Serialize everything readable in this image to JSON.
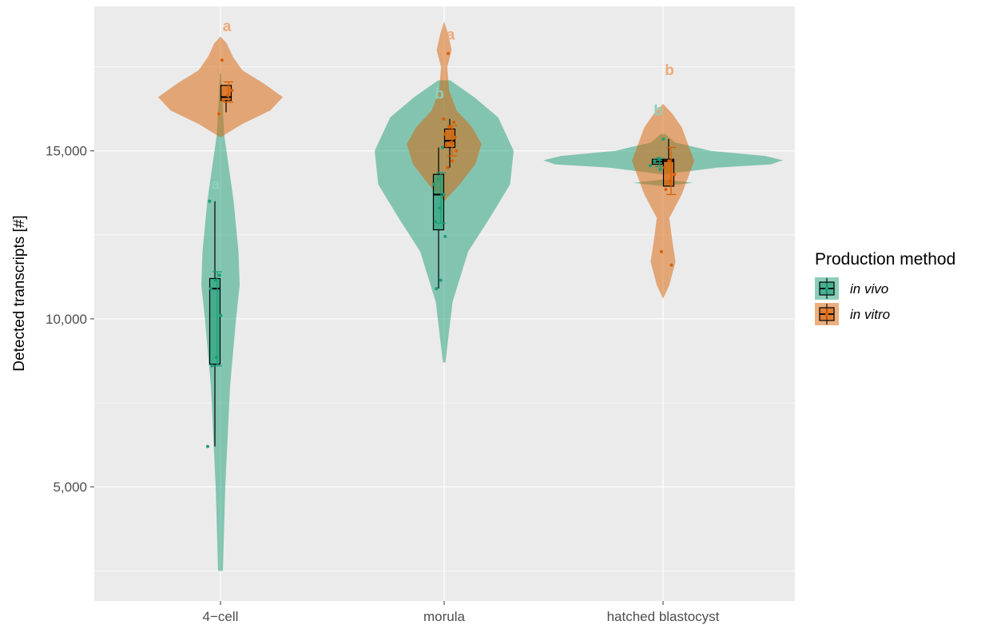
{
  "chart_data": {
    "type": "violin",
    "title": "",
    "xlabel": "",
    "ylabel": "Detected transcripts [#]",
    "categories": [
      "4−cell",
      "morula",
      "hatched blastocyst"
    ],
    "ylim": [
      1600,
      19300
    ],
    "yticks": [
      5000,
      10000,
      15000
    ],
    "ytick_labels": [
      "5,000",
      "10,000",
      "15,000"
    ],
    "grid": true,
    "legend": {
      "title": "Production method",
      "position": "right"
    },
    "colors": {
      "panel_bg": "#ebebeb",
      "grid": "#ffffff",
      "in_vivo": "#1b9e77",
      "in_vitro": "#d95f02",
      "in_vivo_letter": "#8fcfbb",
      "in_vitro_letter": "#eda97a"
    },
    "series": [
      {
        "name": "in vivo",
        "key": "in_vivo",
        "groups": [
          {
            "category": "4−cell",
            "box": {
              "whisker_low": 6200,
              "q1": 8650,
              "median": 10900,
              "q3": 11200,
              "whisker_high": 13500
            },
            "mean": 10000,
            "sd": 1400,
            "points": [
              6200,
              8600,
              8850,
              10100,
              10900,
              11150,
              11300,
              13500
            ],
            "violin": [
              [
                2500,
                0.02
              ],
              [
                5000,
                0.04
              ],
              [
                8000,
                0.08
              ],
              [
                10000,
                0.13
              ],
              [
                11000,
                0.16
              ],
              [
                12000,
                0.15
              ],
              [
                13500,
                0.11
              ],
              [
                14500,
                0.07
              ],
              [
                15500,
                0.03
              ],
              [
                17300,
                0.005
              ]
            ],
            "sig_letter": "a",
            "sig_y": 14000
          },
          {
            "category": "morula",
            "box": {
              "whisker_low": 10900,
              "q1": 12650,
              "median": 13700,
              "q3": 14300,
              "whisker_high": 15100
            },
            "mean": 13600,
            "sd": 750,
            "points": [
              10900,
              11150,
              12450,
              12900,
              13300,
              13700,
              14000,
              14150,
              15100
            ],
            "violin": [
              [
                8700,
                0.01
              ],
              [
                10500,
                0.07
              ],
              [
                12000,
                0.2
              ],
              [
                13000,
                0.38
              ],
              [
                14000,
                0.55
              ],
              [
                15000,
                0.58
              ],
              [
                16000,
                0.45
              ],
              [
                16600,
                0.25
              ],
              [
                17100,
                0.05
              ]
            ],
            "sig_letter": "b",
            "sig_y": 16700
          },
          {
            "category": "hatched blastocyst",
            "box": {
              "whisker_low": 14600,
              "q1": 14600,
              "median": 14680,
              "q3": 14750,
              "whisker_high": 14800
            },
            "mean": 14650,
            "sd": 120,
            "points": [
              14450,
              14560,
              14700,
              14780,
              15350
            ],
            "violin": [
              [
                13950,
                0.0
              ],
              [
                14050,
                0.25
              ],
              [
                14150,
                0.0
              ],
              [
                14300,
                0.0
              ],
              [
                14500,
                0.45
              ],
              [
                14600,
                0.9
              ],
              [
                14720,
                1.0
              ],
              [
                14850,
                0.85
              ],
              [
                15000,
                0.4
              ],
              [
                15250,
                0.1
              ],
              [
                15500,
                0.02
              ]
            ],
            "sig_letter": "b",
            "sig_y": 16200
          }
        ]
      },
      {
        "name": "in vitro",
        "key": "in_vitro",
        "groups": [
          {
            "category": "4−cell",
            "box": {
              "whisker_low": 16150,
              "q1": 16500,
              "median": 16600,
              "q3": 16950,
              "whisker_high": 16950
            },
            "mean": 16750,
            "sd": 300,
            "points": [
              16100,
              16500,
              16650,
              16800,
              17700
            ],
            "violin": [
              [
                15400,
                0.0
              ],
              [
                15800,
                0.35
              ],
              [
                16200,
                0.8
              ],
              [
                16600,
                1.0
              ],
              [
                17000,
                0.7
              ],
              [
                17400,
                0.35
              ],
              [
                17800,
                0.2
              ],
              [
                18200,
                0.1
              ],
              [
                18400,
                0.0
              ]
            ],
            "sig_letter": "a",
            "sig_y": 18700
          },
          {
            "category": "morula",
            "box": {
              "whisker_low": 14500,
              "q1": 15100,
              "median": 15300,
              "q3": 15650,
              "whisker_high": 15950
            },
            "mean": 15300,
            "sd": 450,
            "points": [
              14500,
              14700,
              15000,
              15150,
              15250,
              15400,
              15500,
              15700,
              15850,
              15950,
              17900
            ],
            "violin": [
              [
                13500,
                0.0
              ],
              [
                14000,
                0.25
              ],
              [
                14600,
                0.5
              ],
              [
                15200,
                0.6
              ],
              [
                15700,
                0.45
              ],
              [
                16200,
                0.2
              ],
              [
                16800,
                0.08
              ],
              [
                17500,
                0.05
              ],
              [
                18000,
                0.12
              ],
              [
                18500,
                0.06
              ],
              [
                18850,
                0.0
              ]
            ],
            "sig_letter": "a",
            "sig_y": 18450
          },
          {
            "category": "hatched blastocyst",
            "box": {
              "whisker_low": 13950,
              "q1": 13950,
              "median": 14700,
              "q3": 14750,
              "whisker_high": 15350
            },
            "mean": 14400,
            "sd": 700,
            "points": [
              11600,
              12000,
              13850,
              14100,
              14300,
              14500,
              14700
            ],
            "violin": [
              [
                10600,
                0.0
              ],
              [
                11000,
                0.1
              ],
              [
                11700,
                0.2
              ],
              [
                12300,
                0.15
              ],
              [
                13000,
                0.1
              ],
              [
                13700,
                0.3
              ],
              [
                14200,
                0.4
              ],
              [
                14700,
                0.5
              ],
              [
                15200,
                0.4
              ],
              [
                15700,
                0.3
              ],
              [
                16100,
                0.15
              ],
              [
                16400,
                0.0
              ]
            ],
            "sig_letter": "b",
            "sig_y": 17400
          }
        ]
      }
    ]
  }
}
